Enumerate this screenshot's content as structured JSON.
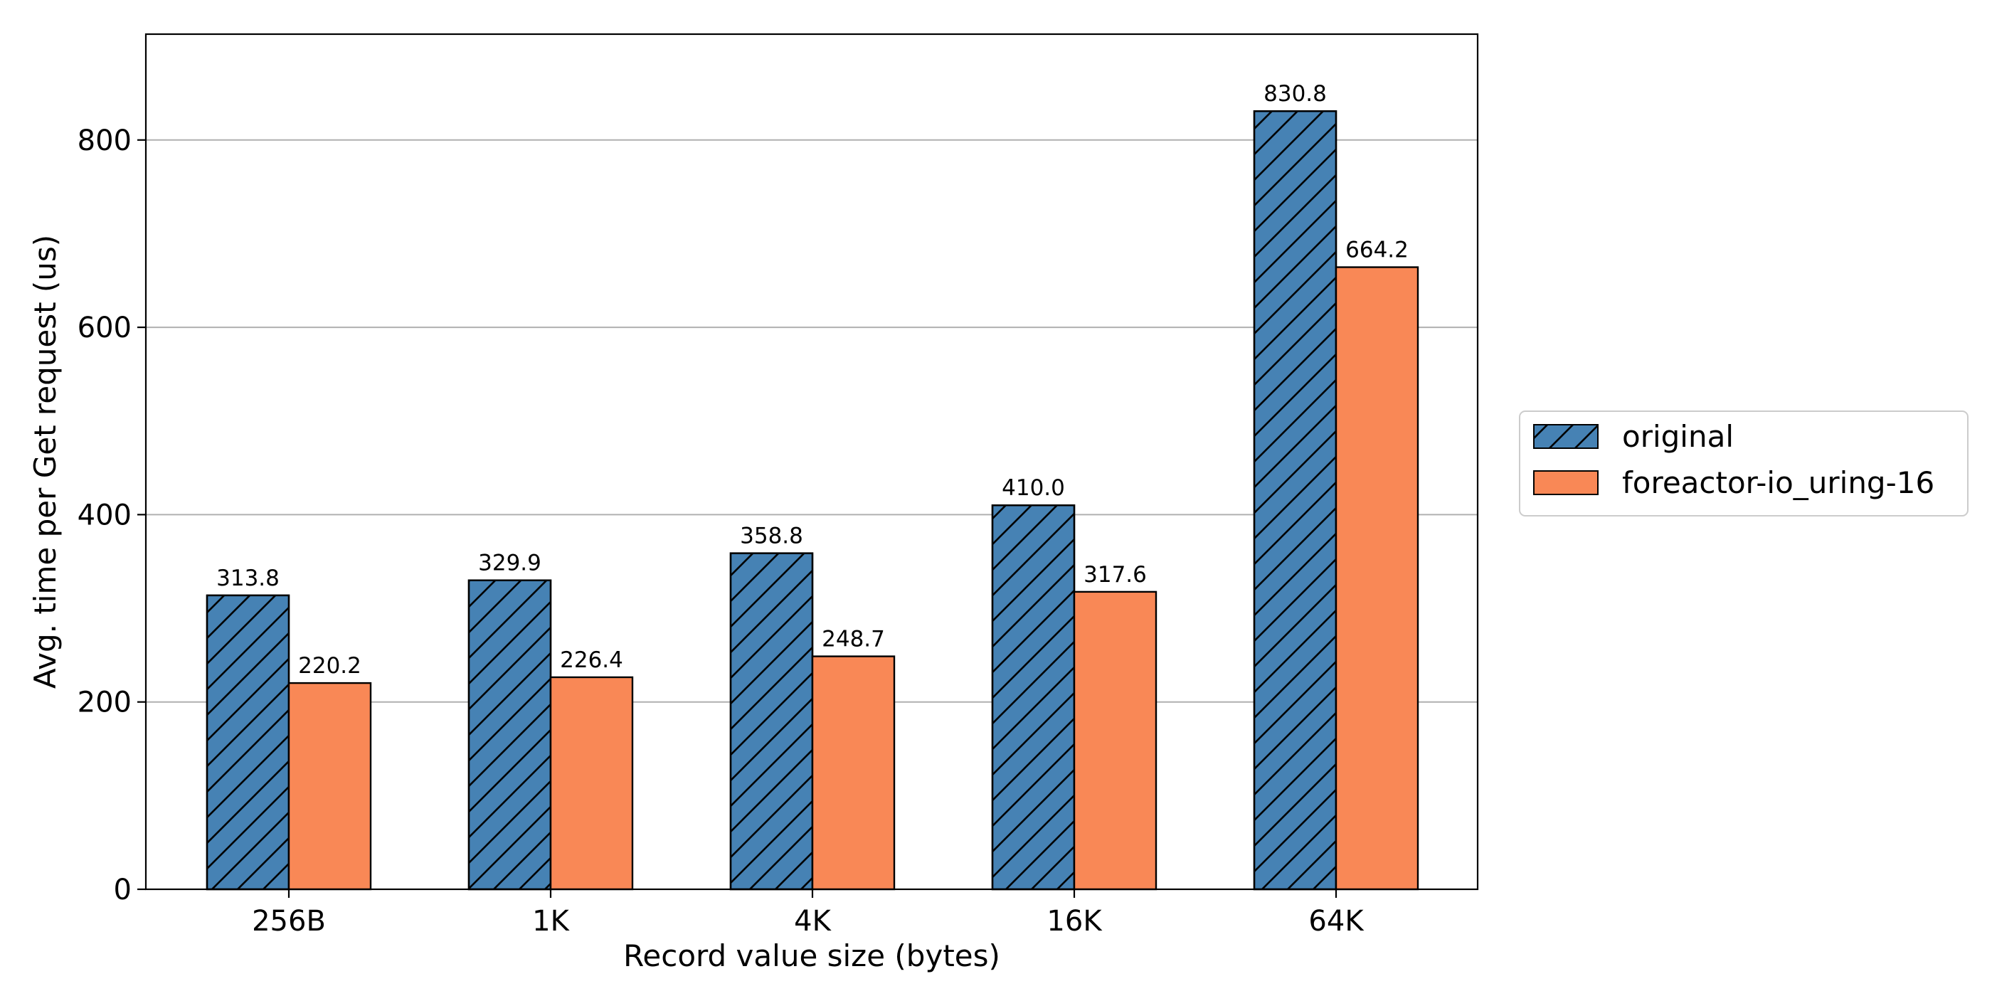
{
  "chart_data": {
    "type": "bar",
    "xlabel": "Record value size (bytes)",
    "ylabel": "Avg. time per Get request (us)",
    "categories": [
      "256B",
      "1K",
      "4K",
      "16K",
      "64K"
    ],
    "series": [
      {
        "name": "original",
        "values": [
          313.8,
          329.9,
          358.8,
          410.0,
          830.8
        ],
        "labels": [
          "313.8",
          "329.9",
          "358.8",
          "410.0",
          "830.8"
        ],
        "color": "#4682b4",
        "hatch": "diagonal"
      },
      {
        "name": "foreactor-io_uring-16",
        "values": [
          220.2,
          226.4,
          248.7,
          317.6,
          664.2
        ],
        "labels": [
          "220.2",
          "226.4",
          "248.7",
          "317.6",
          "664.2"
        ],
        "color": "#f98856",
        "hatch": "none"
      }
    ],
    "ylim": [
      0,
      913
    ],
    "yticks": [
      0,
      200,
      400,
      600,
      800
    ],
    "grid": "horizontal",
    "legend_position": "right"
  }
}
